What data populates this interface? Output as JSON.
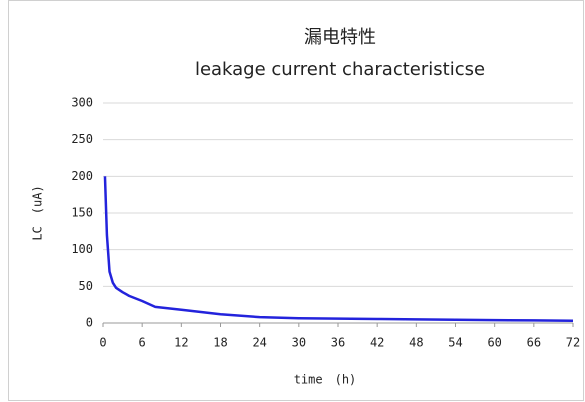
{
  "chart_data": {
    "type": "line",
    "title": "漏电特性",
    "subtitle": "leakage current characteristicse",
    "x_label": "time　(h)",
    "y_label": "LC　(uA)",
    "x": [
      0.3,
      0.6,
      1,
      1.5,
      2,
      3,
      4,
      6,
      8,
      12,
      18,
      24,
      30,
      36,
      42,
      48,
      54,
      60,
      66,
      72
    ],
    "values": [
      200,
      120,
      70,
      55,
      48,
      42,
      37,
      30,
      22,
      18,
      12,
      8,
      6.5,
      6,
      5.5,
      5,
      4.5,
      4,
      3.5,
      3
    ],
    "color": "#2323dc",
    "xlim": [
      0,
      72
    ],
    "xticks": [
      0,
      6,
      12,
      18,
      24,
      30,
      36,
      42,
      48,
      54,
      60,
      66,
      72
    ],
    "ylim": [
      0,
      300
    ],
    "yticks": [
      0,
      50,
      100,
      150,
      200,
      250,
      300
    ],
    "grid": true
  }
}
